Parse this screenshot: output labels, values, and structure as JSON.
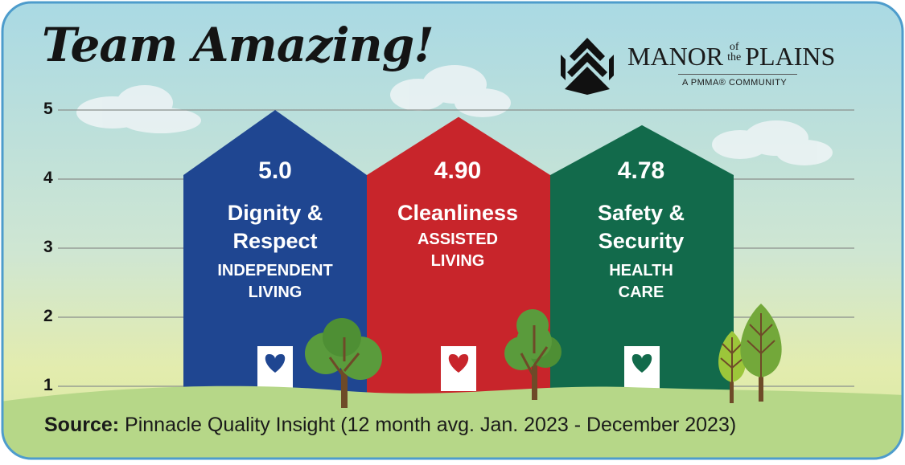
{
  "header": {
    "title": "Team Amazing!",
    "brand_name_left": "MANOR",
    "brand_name_of": "of",
    "brand_name_the": "the",
    "brand_name_right": "PLAINS",
    "brand_tagline": "A PMMA® COMMUNITY"
  },
  "chart_data": {
    "type": "bar",
    "categories": [
      "Dignity & Respect",
      "Cleanliness",
      "Safety & Security"
    ],
    "groups": [
      "INDEPENDENT LIVING",
      "ASSISTED LIVING",
      "HEALTH CARE"
    ],
    "value_labels": [
      "5.0",
      "4.90",
      "4.78"
    ],
    "values": [
      5.0,
      4.9,
      4.78
    ],
    "yticks": [
      "1",
      "2",
      "3",
      "4",
      "5"
    ],
    "ylim": [
      1,
      5
    ],
    "grid": true,
    "colors": [
      "#1f4691",
      "#c8252b",
      "#126a4b"
    ]
  },
  "houses": [
    {
      "value": "5.0",
      "cat1": "Dignity &",
      "cat2": "Respect",
      "unit1": "INDEPENDENT",
      "unit2": "LIVING"
    },
    {
      "value": "4.90",
      "cat1": "Cleanliness",
      "cat2": "",
      "unit1": "ASSISTED",
      "unit2": "LIVING"
    },
    {
      "value": "4.78",
      "cat1": "Safety &",
      "cat2": "Security",
      "unit1": "HEALTH",
      "unit2": "CARE"
    }
  ],
  "footer": {
    "source_label": "Source:",
    "source_text": " Pinnacle Quality Insight (12 month avg. Jan. 2023 - December 2023)"
  }
}
